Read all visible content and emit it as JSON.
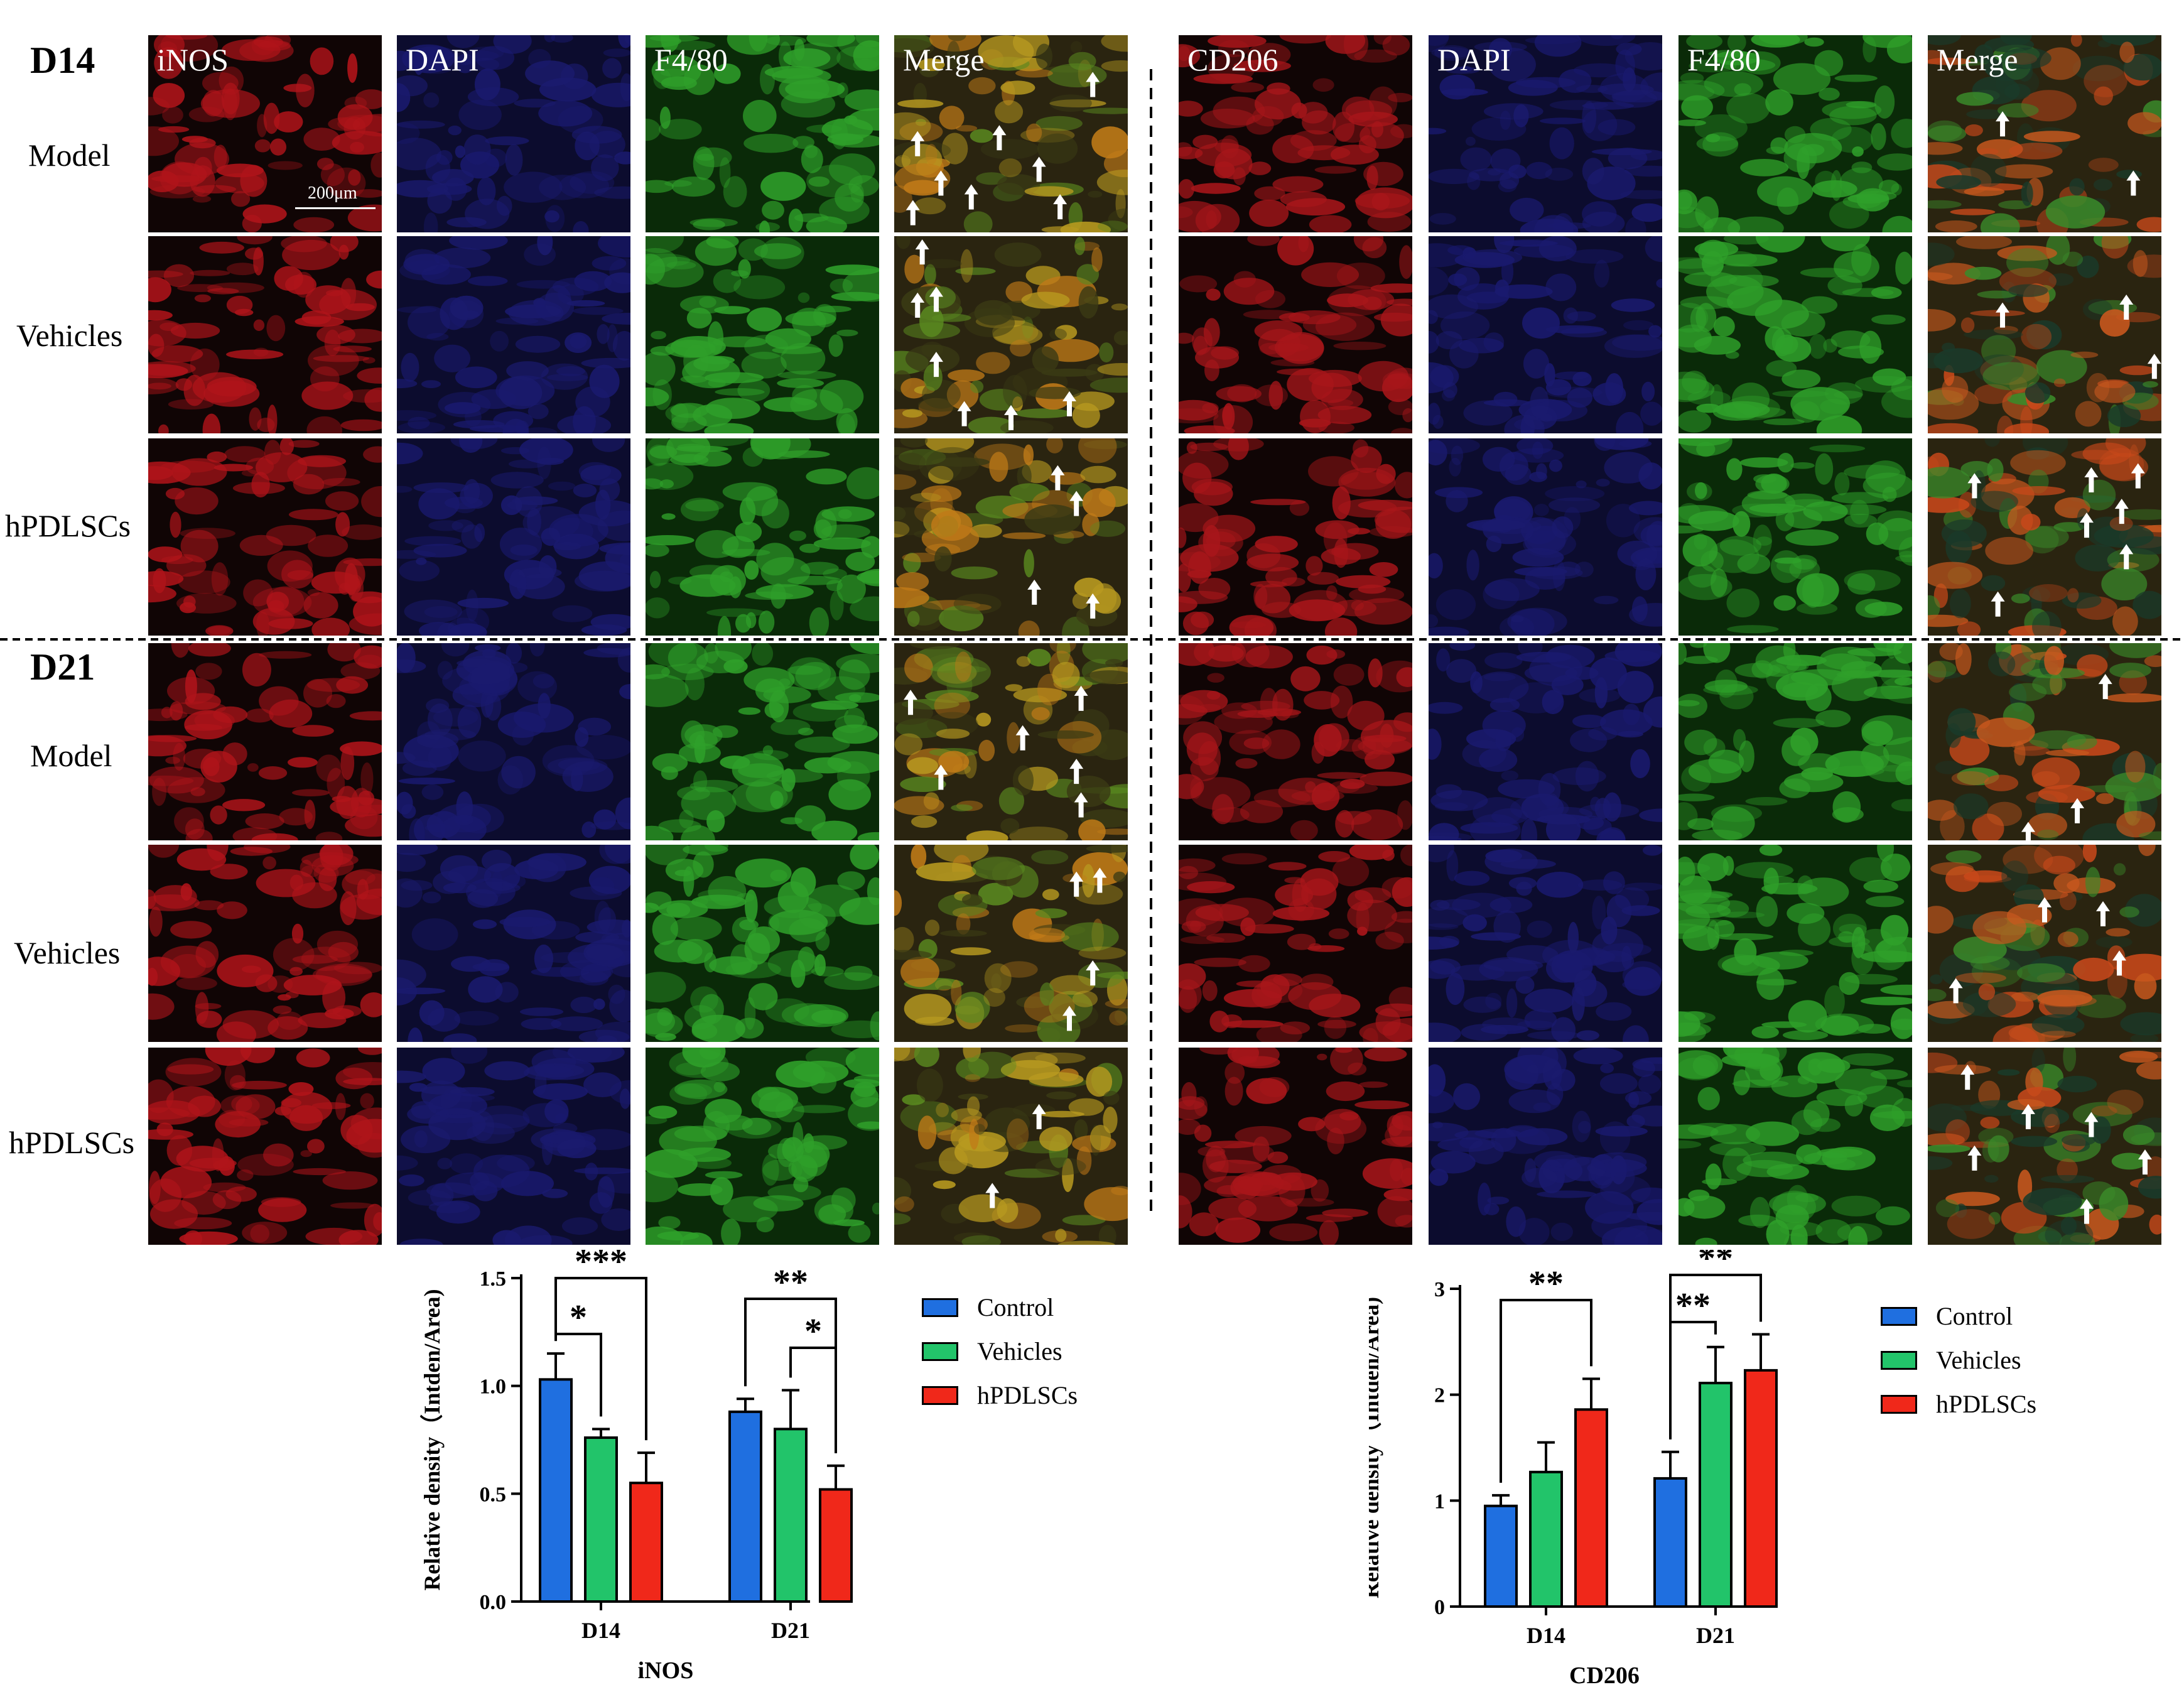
{
  "figure": {
    "scale_bar": "200μm",
    "left_panel": {
      "channel_labels": [
        "iNOS",
        "DAPI",
        "F4/80",
        "Merge"
      ],
      "channel_colors": [
        "#b0141a",
        "#1a1a6e",
        "#2fa02a",
        "#8a7a2a"
      ]
    },
    "right_panel": {
      "channel_labels": [
        "CD206",
        "DAPI",
        "F4/80",
        "Merge"
      ],
      "channel_colors": [
        "#a8161a",
        "#1a1a6e",
        "#2fa02a",
        "#b8602a"
      ]
    },
    "days": [
      {
        "label": "D14",
        "rows": [
          "Model",
          "Vehicles",
          "hPDLSCs"
        ]
      },
      {
        "label": "D21",
        "rows": [
          "Model",
          "Vehicles",
          "hPDLSCs"
        ]
      }
    ],
    "arrow_icon": "white-up-arrow-icon"
  },
  "chart_data": [
    {
      "type": "bar",
      "title": "iNOS",
      "categories": [
        "D14",
        "D21"
      ],
      "ylabel": "Relative density（Intden/Area)",
      "xlabel": "iNOS",
      "ylim": [
        0,
        1.5
      ],
      "yticks": [
        "0.0",
        "0.5",
        "1.0",
        "1.5"
      ],
      "series": [
        {
          "name": "Control",
          "color": "#1f6fe0",
          "values": [
            1.03,
            0.88
          ],
          "errors": [
            0.12,
            0.06
          ]
        },
        {
          "name": "Vehicles",
          "color": "#22c46a",
          "values": [
            0.76,
            0.8
          ],
          "errors": [
            0.04,
            0.18
          ]
        },
        {
          "name": "hPDLSCs",
          "color": "#f0281a",
          "values": [
            0.55,
            0.52
          ],
          "errors": [
            0.14,
            0.11
          ]
        }
      ],
      "significance": [
        {
          "group": "D14",
          "from": 0,
          "to": 1,
          "label": "*"
        },
        {
          "group": "D14",
          "from": 0,
          "to": 2,
          "label": "***"
        },
        {
          "group": "D21",
          "from": 0,
          "to": 2,
          "label": "**"
        },
        {
          "group": "D21",
          "from": 1,
          "to": 2,
          "label": "*"
        }
      ],
      "legend": [
        "Control",
        "Vehicles",
        "hPDLSCs"
      ]
    },
    {
      "type": "bar",
      "title": "CD206",
      "categories": [
        "D14",
        "D21"
      ],
      "ylabel": "Relative density（Intden/Area)",
      "xlabel": "CD206",
      "ylim": [
        0,
        3
      ],
      "yticks": [
        "0",
        "1",
        "2",
        "3"
      ],
      "series": [
        {
          "name": "Control",
          "color": "#1f6fe0",
          "values": [
            0.95,
            1.21
          ],
          "errors": [
            0.1,
            0.25
          ]
        },
        {
          "name": "Vehicles",
          "color": "#22c46a",
          "values": [
            1.27,
            2.11
          ],
          "errors": [
            0.28,
            0.34
          ]
        },
        {
          "name": "hPDLSCs",
          "color": "#f0281a",
          "values": [
            1.86,
            2.23
          ],
          "errors": [
            0.29,
            0.34
          ]
        }
      ],
      "significance": [
        {
          "group": "D14",
          "from": 0,
          "to": 2,
          "label": "**"
        },
        {
          "group": "D21",
          "from": 0,
          "to": 1,
          "label": "**"
        },
        {
          "group": "D21",
          "from": 0,
          "to": 2,
          "label": "**"
        }
      ],
      "legend": [
        "Control",
        "Vehicles",
        "hPDLSCs"
      ]
    }
  ]
}
